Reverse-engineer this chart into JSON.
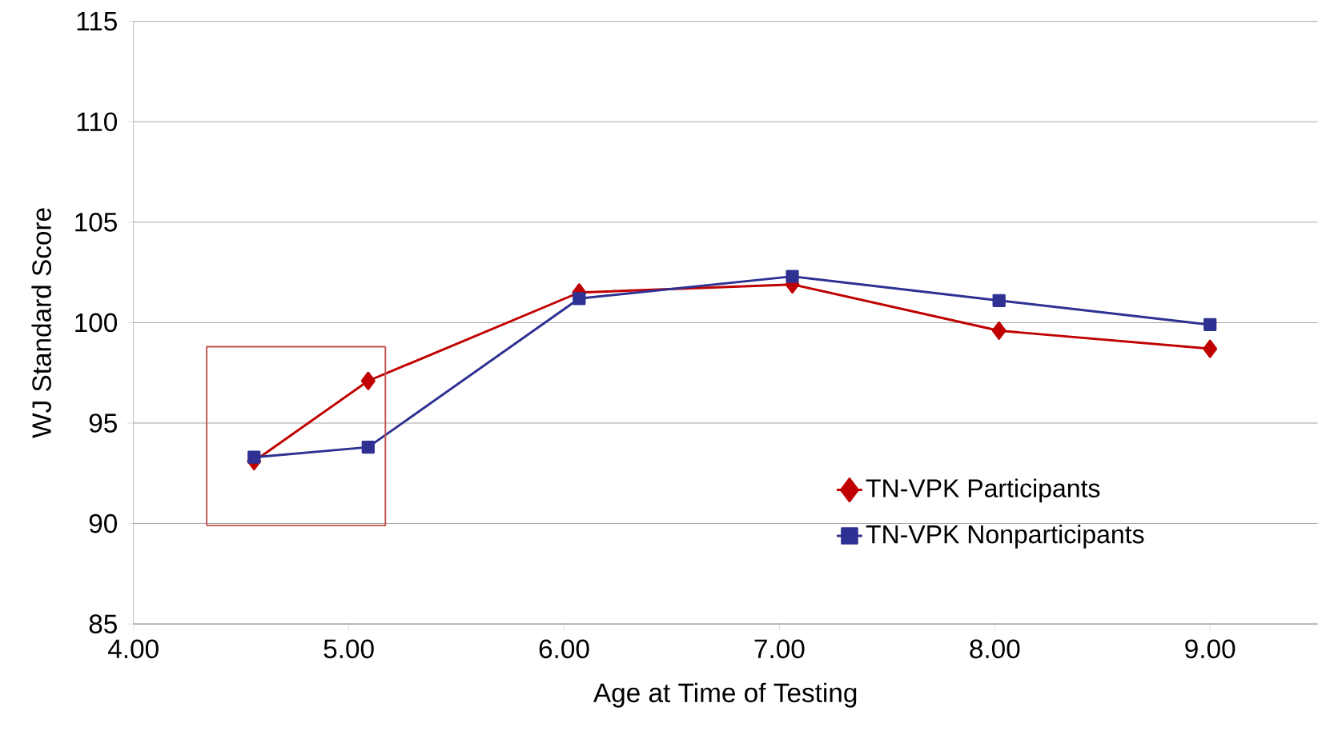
{
  "chart_data": {
    "type": "line",
    "xlabel": "Age at Time of Testing",
    "ylabel": "WJ Standard  Score",
    "xlim": [
      4,
      9.5
    ],
    "xticks": [
      {
        "value": 4,
        "label": "4.00"
      },
      {
        "value": 5,
        "label": "5.00"
      },
      {
        "value": 6,
        "label": "6.00"
      },
      {
        "value": 7,
        "label": "7.00"
      },
      {
        "value": 8,
        "label": "8.00"
      },
      {
        "value": 9,
        "label": "9.00"
      }
    ],
    "ylim": [
      85,
      115
    ],
    "yticks": [
      85,
      90,
      95,
      100,
      105,
      110,
      115
    ],
    "grid": "y",
    "legend": "bottom right",
    "series": [
      {
        "name": "TN-VPK Participants",
        "color": "#c00000",
        "marker": "diamond",
        "x": [
          4.56,
          5.09,
          6.07,
          7.06,
          8.02,
          9.0
        ],
        "values": [
          93.1,
          97.1,
          101.5,
          101.9,
          99.6,
          98.7
        ]
      },
      {
        "name": "TN-VPK Nonparticipants",
        "color": "#2e3192",
        "marker": "square",
        "x": [
          4.56,
          5.09,
          6.07,
          7.06,
          8.02,
          9.0
        ],
        "values": [
          93.3,
          93.8,
          101.2,
          102.3,
          101.1,
          99.9
        ]
      },
      {
        "type": "line",
        "color": "#c0504d",
        "marker": "none",
        "x": [
          4.34,
          4.34,
          5.17
        ],
        "values": [
          89.9,
          98.8,
          98.8
        ]
      },
      {
        "type": "line",
        "color": "#c0504d",
        "marker": "none",
        "x": [
          5.17,
          5.17,
          4.34
        ],
        "values": [
          98.8,
          89.9,
          89.9
        ]
      }
    ]
  }
}
